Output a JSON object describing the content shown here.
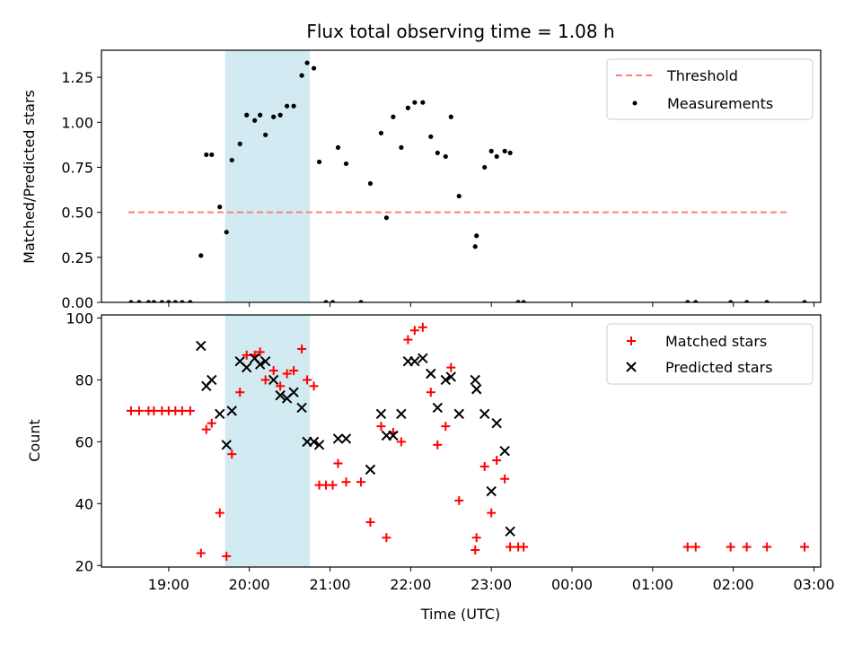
{
  "chart_data": [
    {
      "type": "scatter",
      "title": "Flux total observing time = 1.08 h",
      "xlabel": "",
      "ylabel": "Matched/Predicted stars",
      "ylim": [
        0,
        1.4
      ],
      "yticks": [
        "0.00",
        "0.25",
        "0.50",
        "0.75",
        "1.00",
        "1.25"
      ],
      "x_range": [
        "18:10",
        "03:05"
      ],
      "shaded_region": [
        "19:42",
        "20:45"
      ],
      "shade_color": "#add8e6",
      "legend_position": "top-right",
      "threshold": {
        "name": "Threshold",
        "value": 0.5,
        "x": [
          "18:30",
          "02:40"
        ],
        "color": "#ff7f7f"
      },
      "series": [
        {
          "name": "Measurements",
          "color": "#000000",
          "points": [
            [
              "18:32",
              0
            ],
            [
              "18:38",
              0
            ],
            [
              "18:45",
              0
            ],
            [
              "18:49",
              0
            ],
            [
              "18:55",
              0
            ],
            [
              "19:00",
              0
            ],
            [
              "19:05",
              0
            ],
            [
              "19:10",
              0
            ],
            [
              "19:16",
              0
            ],
            [
              "19:24",
              0.26
            ],
            [
              "19:28",
              0.82
            ],
            [
              "19:32",
              0.82
            ],
            [
              "19:38",
              0.53
            ],
            [
              "19:43",
              0.39
            ],
            [
              "19:47",
              0.79
            ],
            [
              "19:53",
              0.88
            ],
            [
              "19:58",
              1.04
            ],
            [
              "20:04",
              1.01
            ],
            [
              "20:08",
              1.04
            ],
            [
              "20:12",
              0.93
            ],
            [
              "20:18",
              1.03
            ],
            [
              "20:23",
              1.04
            ],
            [
              "20:28",
              1.09
            ],
            [
              "20:33",
              1.09
            ],
            [
              "20:39",
              1.26
            ],
            [
              "20:43",
              1.33
            ],
            [
              "20:48",
              1.3
            ],
            [
              "20:52",
              0.78
            ],
            [
              "20:57",
              0
            ],
            [
              "21:02",
              0
            ],
            [
              "21:06",
              0.86
            ],
            [
              "21:12",
              0.77
            ],
            [
              "21:23",
              0
            ],
            [
              "21:30",
              0.66
            ],
            [
              "21:38",
              0.94
            ],
            [
              "21:42",
              0.47
            ],
            [
              "21:47",
              1.03
            ],
            [
              "21:53",
              0.86
            ],
            [
              "21:58",
              1.08
            ],
            [
              "22:03",
              1.11
            ],
            [
              "22:09",
              1.11
            ],
            [
              "22:15",
              0.92
            ],
            [
              "22:20",
              0.83
            ],
            [
              "22:26",
              0.81
            ],
            [
              "22:30",
              1.03
            ],
            [
              "22:36",
              0.59
            ],
            [
              "22:48",
              0.31
            ],
            [
              "22:49",
              0.37
            ],
            [
              "22:55",
              0.75
            ],
            [
              "23:00",
              0.84
            ],
            [
              "23:04",
              0.81
            ],
            [
              "23:10",
              0.84
            ],
            [
              "23:14",
              0.83
            ],
            [
              "23:20",
              0
            ],
            [
              "23:24",
              0
            ],
            [
              "01:26",
              0
            ],
            [
              "01:32",
              0
            ],
            [
              "01:58",
              0
            ],
            [
              "02:10",
              0
            ],
            [
              "02:25",
              0
            ],
            [
              "02:53",
              0
            ]
          ]
        }
      ]
    },
    {
      "type": "scatter",
      "xlabel": "Time (UTC)",
      "ylabel": "Count",
      "ylim": [
        19.5,
        101
      ],
      "yticks": [
        "20",
        "40",
        "60",
        "80",
        "100"
      ],
      "xticks": [
        "19:00",
        "20:00",
        "21:00",
        "22:00",
        "23:00",
        "00:00",
        "01:00",
        "02:00",
        "03:00"
      ],
      "x_range": [
        "18:10",
        "03:05"
      ],
      "shaded_region": [
        "19:42",
        "20:45"
      ],
      "legend_position": "top-right",
      "series": [
        {
          "name": "Matched stars",
          "marker": "plus",
          "color": "#ff0000",
          "points": [
            [
              "18:32",
              70
            ],
            [
              "18:38",
              70
            ],
            [
              "18:45",
              70
            ],
            [
              "18:49",
              70
            ],
            [
              "18:55",
              70
            ],
            [
              "19:00",
              70
            ],
            [
              "19:05",
              70
            ],
            [
              "19:10",
              70
            ],
            [
              "19:16",
              70
            ],
            [
              "19:24",
              24
            ],
            [
              "19:28",
              64
            ],
            [
              "19:32",
              66
            ],
            [
              "19:38",
              37
            ],
            [
              "19:43",
              23
            ],
            [
              "19:47",
              56
            ],
            [
              "19:53",
              76
            ],
            [
              "19:58",
              88
            ],
            [
              "20:04",
              88
            ],
            [
              "20:08",
              89
            ],
            [
              "20:12",
              80
            ],
            [
              "20:18",
              83
            ],
            [
              "20:23",
              78
            ],
            [
              "20:28",
              82
            ],
            [
              "20:33",
              83
            ],
            [
              "20:39",
              90
            ],
            [
              "20:43",
              80
            ],
            [
              "20:48",
              78
            ],
            [
              "20:52",
              46
            ],
            [
              "20:57",
              46
            ],
            [
              "21:02",
              46
            ],
            [
              "21:06",
              53
            ],
            [
              "21:12",
              47
            ],
            [
              "21:23",
              47
            ],
            [
              "21:30",
              34
            ],
            [
              "21:38",
              65
            ],
            [
              "21:42",
              29
            ],
            [
              "21:47",
              63
            ],
            [
              "21:53",
              60
            ],
            [
              "21:58",
              93
            ],
            [
              "22:03",
              96
            ],
            [
              "22:09",
              97
            ],
            [
              "22:15",
              76
            ],
            [
              "22:20",
              59
            ],
            [
              "22:26",
              65
            ],
            [
              "22:30",
              84
            ],
            [
              "22:36",
              41
            ],
            [
              "22:48",
              25
            ],
            [
              "22:49",
              29
            ],
            [
              "22:55",
              52
            ],
            [
              "23:00",
              37
            ],
            [
              "23:04",
              54
            ],
            [
              "23:10",
              48
            ],
            [
              "23:14",
              26
            ],
            [
              "23:20",
              26
            ],
            [
              "23:24",
              26
            ],
            [
              "01:26",
              26
            ],
            [
              "01:32",
              26
            ],
            [
              "01:58",
              26
            ],
            [
              "02:10",
              26
            ],
            [
              "02:25",
              26
            ],
            [
              "02:53",
              26
            ]
          ]
        },
        {
          "name": "Predicted stars",
          "marker": "x",
          "color": "#000000",
          "points": [
            [
              "19:24",
              91
            ],
            [
              "19:28",
              78
            ],
            [
              "19:32",
              80
            ],
            [
              "19:38",
              69
            ],
            [
              "19:43",
              59
            ],
            [
              "19:47",
              70
            ],
            [
              "19:53",
              86
            ],
            [
              "19:58",
              84
            ],
            [
              "20:04",
              87
            ],
            [
              "20:08",
              85
            ],
            [
              "20:12",
              86
            ],
            [
              "20:18",
              80
            ],
            [
              "20:23",
              75
            ],
            [
              "20:28",
              74
            ],
            [
              "20:33",
              76
            ],
            [
              "20:39",
              71
            ],
            [
              "20:43",
              60
            ],
            [
              "20:48",
              60
            ],
            [
              "20:52",
              59
            ],
            [
              "21:06",
              61
            ],
            [
              "21:12",
              61
            ],
            [
              "21:30",
              51
            ],
            [
              "21:38",
              69
            ],
            [
              "21:42",
              62
            ],
            [
              "21:47",
              62
            ],
            [
              "21:53",
              69
            ],
            [
              "21:58",
              86
            ],
            [
              "22:03",
              86
            ],
            [
              "22:09",
              87
            ],
            [
              "22:15",
              82
            ],
            [
              "22:20",
              71
            ],
            [
              "22:26",
              80
            ],
            [
              "22:30",
              81
            ],
            [
              "22:36",
              69
            ],
            [
              "22:48",
              80
            ],
            [
              "22:49",
              77
            ],
            [
              "22:55",
              69
            ],
            [
              "23:00",
              44
            ],
            [
              "23:04",
              66
            ],
            [
              "23:10",
              57
            ],
            [
              "23:14",
              31
            ]
          ]
        }
      ]
    }
  ]
}
